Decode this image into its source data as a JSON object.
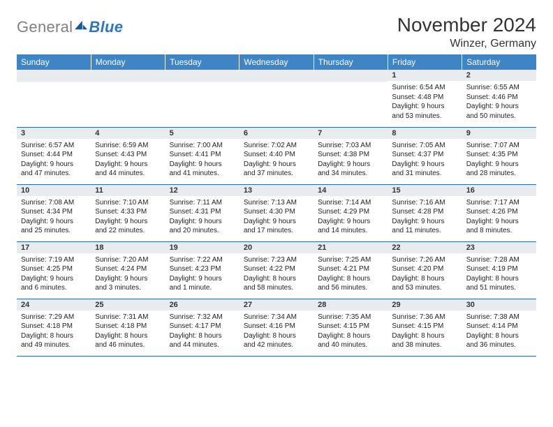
{
  "brand": {
    "name_part1": "General",
    "name_part2": "Blue",
    "color_gray": "#808080",
    "color_blue": "#2b78c2",
    "sail_fill": "#145a9e"
  },
  "header": {
    "month_title": "November 2024",
    "location": "Winzer, Germany"
  },
  "style": {
    "header_row_bg": "#3f85c6",
    "header_row_text": "#ffffff",
    "day_head_bg": "#e8ecef",
    "row_border": "#2b6aa8",
    "page_bg": "#ffffff",
    "text_color": "#222222",
    "font_family": "Arial"
  },
  "calendar": {
    "day_headers": [
      "Sunday",
      "Monday",
      "Tuesday",
      "Wednesday",
      "Thursday",
      "Friday",
      "Saturday"
    ],
    "weeks": [
      [
        null,
        null,
        null,
        null,
        null,
        {
          "n": "1",
          "sr": "6:54 AM",
          "ss": "4:48 PM",
          "dl": "9 hours and 53 minutes."
        },
        {
          "n": "2",
          "sr": "6:55 AM",
          "ss": "4:46 PM",
          "dl": "9 hours and 50 minutes."
        }
      ],
      [
        {
          "n": "3",
          "sr": "6:57 AM",
          "ss": "4:44 PM",
          "dl": "9 hours and 47 minutes."
        },
        {
          "n": "4",
          "sr": "6:59 AM",
          "ss": "4:43 PM",
          "dl": "9 hours and 44 minutes."
        },
        {
          "n": "5",
          "sr": "7:00 AM",
          "ss": "4:41 PM",
          "dl": "9 hours and 41 minutes."
        },
        {
          "n": "6",
          "sr": "7:02 AM",
          "ss": "4:40 PM",
          "dl": "9 hours and 37 minutes."
        },
        {
          "n": "7",
          "sr": "7:03 AM",
          "ss": "4:38 PM",
          "dl": "9 hours and 34 minutes."
        },
        {
          "n": "8",
          "sr": "7:05 AM",
          "ss": "4:37 PM",
          "dl": "9 hours and 31 minutes."
        },
        {
          "n": "9",
          "sr": "7:07 AM",
          "ss": "4:35 PM",
          "dl": "9 hours and 28 minutes."
        }
      ],
      [
        {
          "n": "10",
          "sr": "7:08 AM",
          "ss": "4:34 PM",
          "dl": "9 hours and 25 minutes."
        },
        {
          "n": "11",
          "sr": "7:10 AM",
          "ss": "4:33 PM",
          "dl": "9 hours and 22 minutes."
        },
        {
          "n": "12",
          "sr": "7:11 AM",
          "ss": "4:31 PM",
          "dl": "9 hours and 20 minutes."
        },
        {
          "n": "13",
          "sr": "7:13 AM",
          "ss": "4:30 PM",
          "dl": "9 hours and 17 minutes."
        },
        {
          "n": "14",
          "sr": "7:14 AM",
          "ss": "4:29 PM",
          "dl": "9 hours and 14 minutes."
        },
        {
          "n": "15",
          "sr": "7:16 AM",
          "ss": "4:28 PM",
          "dl": "9 hours and 11 minutes."
        },
        {
          "n": "16",
          "sr": "7:17 AM",
          "ss": "4:26 PM",
          "dl": "9 hours and 8 minutes."
        }
      ],
      [
        {
          "n": "17",
          "sr": "7:19 AM",
          "ss": "4:25 PM",
          "dl": "9 hours and 6 minutes."
        },
        {
          "n": "18",
          "sr": "7:20 AM",
          "ss": "4:24 PM",
          "dl": "9 hours and 3 minutes."
        },
        {
          "n": "19",
          "sr": "7:22 AM",
          "ss": "4:23 PM",
          "dl": "9 hours and 1 minute."
        },
        {
          "n": "20",
          "sr": "7:23 AM",
          "ss": "4:22 PM",
          "dl": "8 hours and 58 minutes."
        },
        {
          "n": "21",
          "sr": "7:25 AM",
          "ss": "4:21 PM",
          "dl": "8 hours and 56 minutes."
        },
        {
          "n": "22",
          "sr": "7:26 AM",
          "ss": "4:20 PM",
          "dl": "8 hours and 53 minutes."
        },
        {
          "n": "23",
          "sr": "7:28 AM",
          "ss": "4:19 PM",
          "dl": "8 hours and 51 minutes."
        }
      ],
      [
        {
          "n": "24",
          "sr": "7:29 AM",
          "ss": "4:18 PM",
          "dl": "8 hours and 49 minutes."
        },
        {
          "n": "25",
          "sr": "7:31 AM",
          "ss": "4:18 PM",
          "dl": "8 hours and 46 minutes."
        },
        {
          "n": "26",
          "sr": "7:32 AM",
          "ss": "4:17 PM",
          "dl": "8 hours and 44 minutes."
        },
        {
          "n": "27",
          "sr": "7:34 AM",
          "ss": "4:16 PM",
          "dl": "8 hours and 42 minutes."
        },
        {
          "n": "28",
          "sr": "7:35 AM",
          "ss": "4:15 PM",
          "dl": "8 hours and 40 minutes."
        },
        {
          "n": "29",
          "sr": "7:36 AM",
          "ss": "4:15 PM",
          "dl": "8 hours and 38 minutes."
        },
        {
          "n": "30",
          "sr": "7:38 AM",
          "ss": "4:14 PM",
          "dl": "8 hours and 36 minutes."
        }
      ]
    ],
    "labels": {
      "sunrise_prefix": "Sunrise: ",
      "sunset_prefix": "Sunset: ",
      "daylight_prefix": "Daylight: "
    }
  }
}
